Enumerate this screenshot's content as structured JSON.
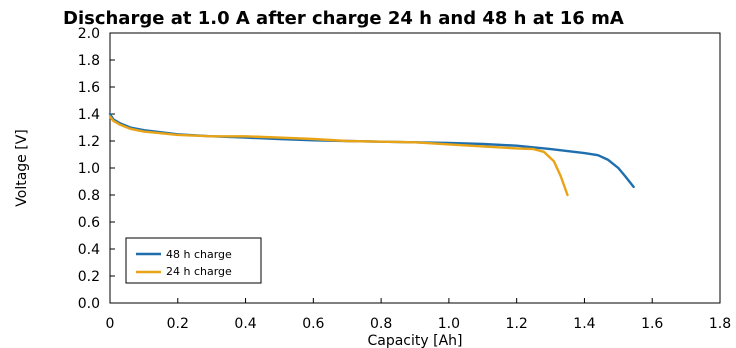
{
  "chart_data": {
    "type": "line",
    "title": "Discharge at 1.0 A after charge 24 h and 48 h at   16 mA",
    "xlabel": "Capacity [Ah]",
    "ylabel": "Voltage [V]",
    "xlim": [
      0,
      1.8
    ],
    "ylim": [
      0,
      2.0
    ],
    "x_ticks": [
      "0",
      "0.2",
      "0.4",
      "0.6",
      "0.8",
      "1.0",
      "1.2",
      "1.4",
      "1.6",
      "1.8"
    ],
    "y_ticks": [
      "0.0",
      "0.2",
      "0.4",
      "0.6",
      "0.8",
      "1.0",
      "1.2",
      "1.4",
      "1.6",
      "1.8",
      "2.0"
    ],
    "legend_position": "bottom-left",
    "grid": false,
    "series": [
      {
        "name": "48 h charge",
        "color": "#1f6fae",
        "points": [
          [
            0,
            1.4
          ],
          [
            0.01,
            1.36
          ],
          [
            0.03,
            1.33
          ],
          [
            0.06,
            1.3
          ],
          [
            0.1,
            1.28
          ],
          [
            0.2,
            1.25
          ],
          [
            0.3,
            1.235
          ],
          [
            0.4,
            1.225
          ],
          [
            0.5,
            1.215
          ],
          [
            0.6,
            1.205
          ],
          [
            0.7,
            1.2
          ],
          [
            0.8,
            1.195
          ],
          [
            0.9,
            1.19
          ],
          [
            1.0,
            1.185
          ],
          [
            1.1,
            1.178
          ],
          [
            1.2,
            1.165
          ],
          [
            1.3,
            1.14
          ],
          [
            1.35,
            1.125
          ],
          [
            1.4,
            1.11
          ],
          [
            1.44,
            1.095
          ],
          [
            1.47,
            1.06
          ],
          [
            1.5,
            1.0
          ],
          [
            1.52,
            0.94
          ],
          [
            1.545,
            0.86
          ]
        ]
      },
      {
        "name": "24 h charge",
        "color": "#e8a317",
        "points": [
          [
            0,
            1.38
          ],
          [
            0.01,
            1.35
          ],
          [
            0.03,
            1.32
          ],
          [
            0.06,
            1.29
          ],
          [
            0.1,
            1.27
          ],
          [
            0.2,
            1.245
          ],
          [
            0.3,
            1.235
          ],
          [
            0.4,
            1.235
          ],
          [
            0.5,
            1.225
          ],
          [
            0.6,
            1.215
          ],
          [
            0.7,
            1.2
          ],
          [
            0.8,
            1.195
          ],
          [
            0.9,
            1.19
          ],
          [
            1.0,
            1.175
          ],
          [
            1.1,
            1.16
          ],
          [
            1.2,
            1.145
          ],
          [
            1.25,
            1.14
          ],
          [
            1.28,
            1.12
          ],
          [
            1.31,
            1.05
          ],
          [
            1.33,
            0.94
          ],
          [
            1.35,
            0.8
          ]
        ]
      }
    ]
  }
}
